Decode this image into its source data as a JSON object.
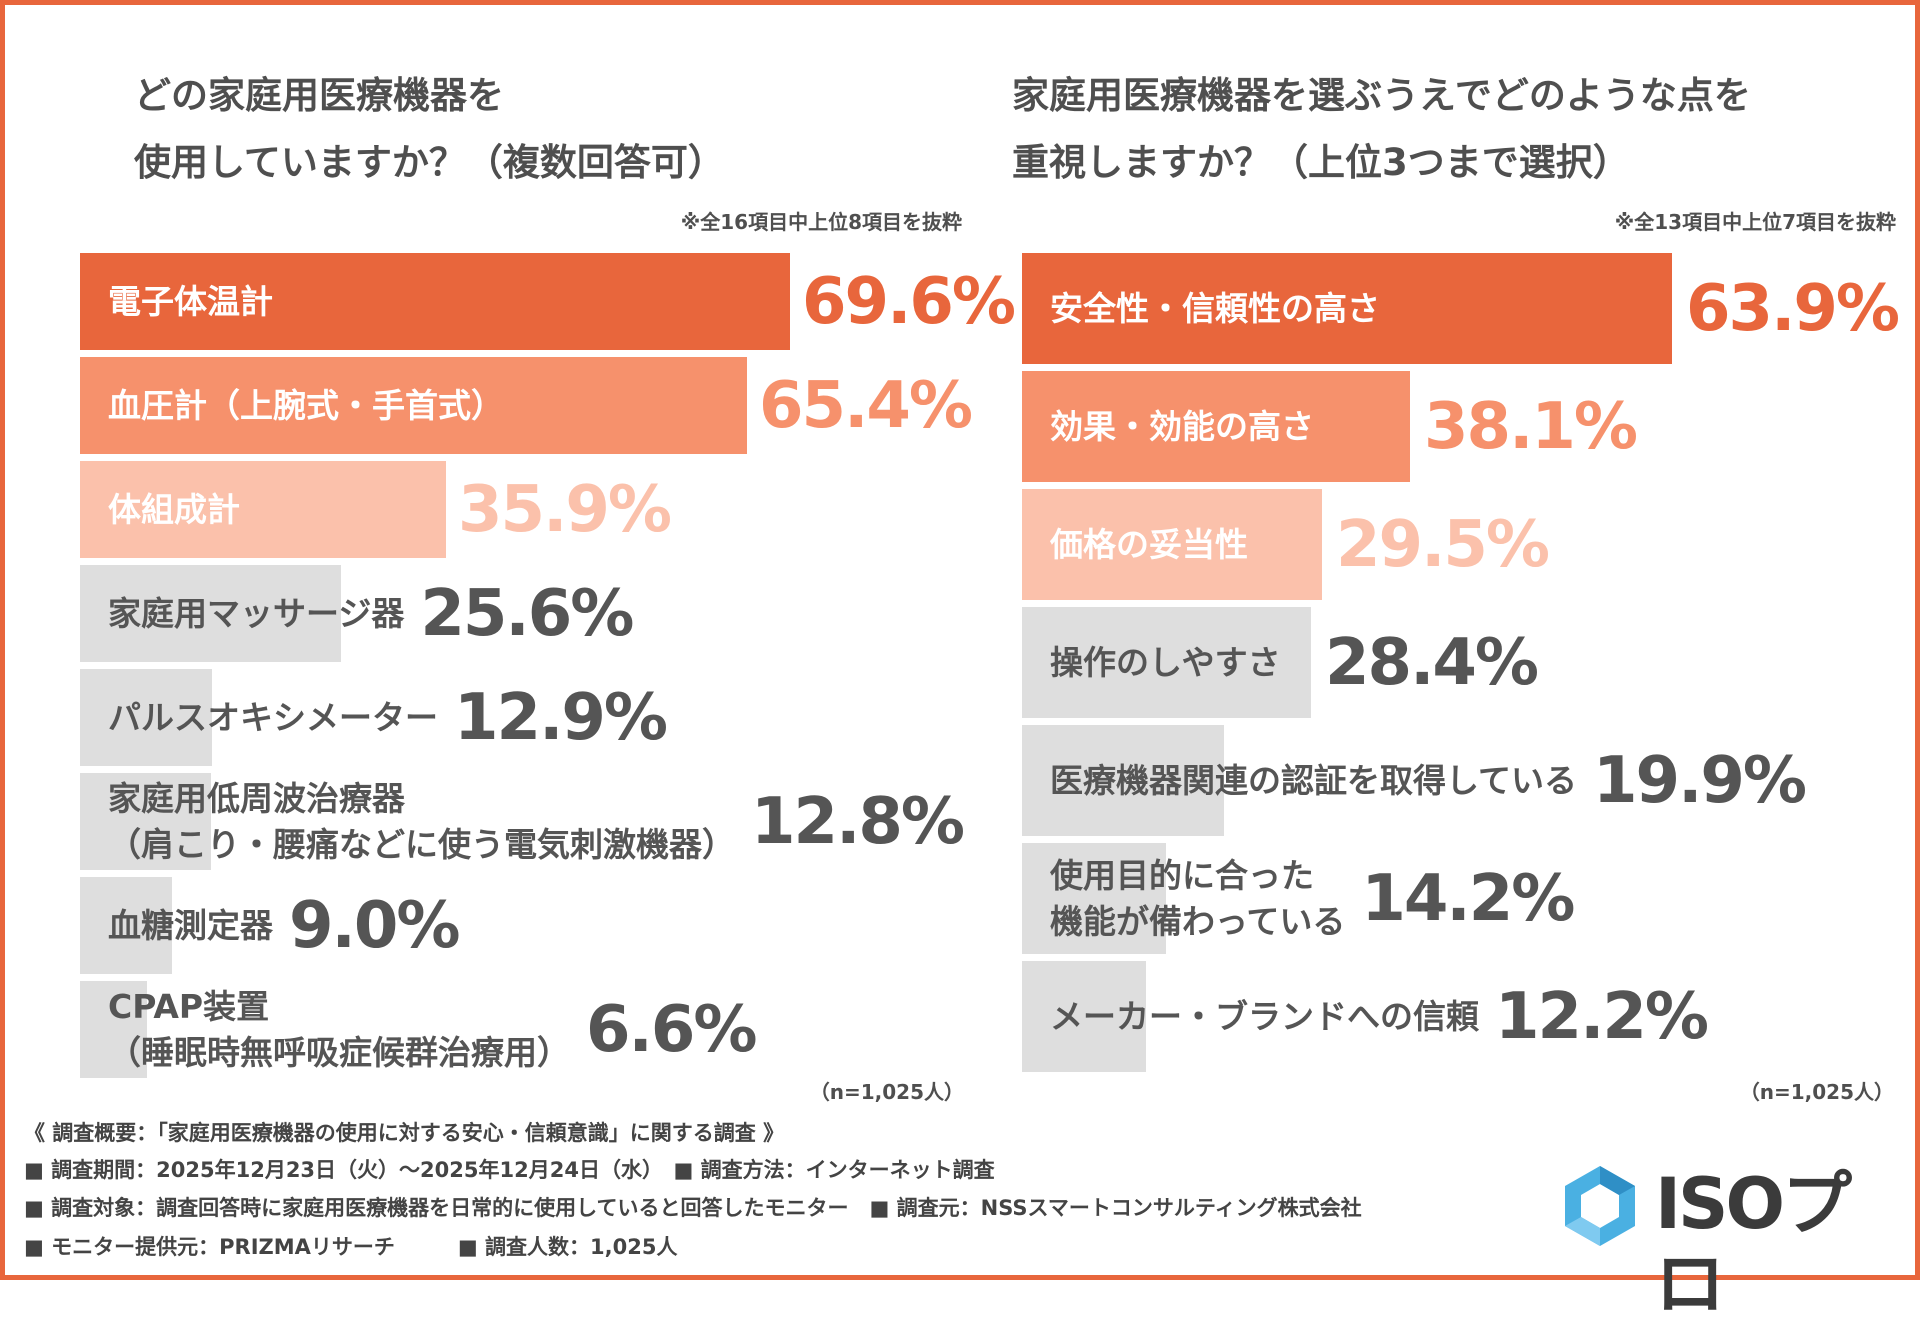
{
  "colors": {
    "frame": "#e8663c",
    "rank1": "#e8663c",
    "rank2": "#f6916c",
    "rank3": "#fbc1ab",
    "other": "#dedede",
    "other_value": "#555555",
    "logo_blue": "#4ab0e2"
  },
  "chart_data": [
    {
      "type": "bar",
      "orientation": "horizontal",
      "title_lines": [
        "どの家庭用医療機器を",
        "使用していますか？（複数回答可）"
      ],
      "note": "※全16項目中上位8項目を抜粋",
      "n_label": "（n=1,025人）",
      "unit": "%",
      "categories": [
        "電子体温計",
        "血圧計（上腕式・手首式）",
        "体組成計",
        "家庭用マッサージ器",
        "パルスオキシメーター",
        "家庭用低周波治療器\n（肩こり・腰痛などに使う電気刺激機器）",
        "血糖測定器",
        "CPAP装置\n（睡眠時無呼吸症候群治療用）"
      ],
      "values": [
        69.6,
        65.4,
        35.9,
        25.6,
        12.9,
        12.8,
        9.0,
        6.6
      ],
      "value_labels": [
        "69.6%",
        "65.4%",
        "35.9%",
        "25.6%",
        "12.9%",
        "12.8%",
        "9.0%",
        "6.6%"
      ]
    },
    {
      "type": "bar",
      "orientation": "horizontal",
      "title_lines": [
        "家庭用医療機器を選ぶうえでどのような点を",
        "重視しますか？（上位3つまで選択）"
      ],
      "note": "※全13項目中上位7項目を抜粋",
      "n_label": "（n=1,025人）",
      "unit": "%",
      "categories": [
        "安全性・信頼性の高さ",
        "効果・効能の高さ",
        "価格の妥当性",
        "操作のしやすさ",
        "医療機器関連の認証を取得している",
        "使用目的に合った\n機能が備わっている",
        "メーカー・ブランドへの信頼"
      ],
      "values": [
        63.9,
        38.1,
        29.5,
        28.4,
        19.9,
        14.2,
        12.2
      ],
      "value_labels": [
        "63.9%",
        "38.1%",
        "29.5%",
        "28.4%",
        "19.9%",
        "14.2%",
        "12.2%"
      ]
    }
  ],
  "footer": {
    "lines": [
      "《 調査概要：「家庭用医療機器の使用に対する安心・信頼意識」に関する調査 》",
      "■ 調査期間：2025年12月23日（火）～2025年12月24日（水）　■ 調査方法：インターネット調査",
      "■ 調査対象：調査回答時に家庭用医療機器を日常的に使用していると回答したモニター　■ 調査元：NSSスマートコンサルティング株式会社",
      "■ モニター提供元：PRIZMAリサーチ　　　■ 調査人数：1,025人"
    ]
  },
  "logo": {
    "text": "ISOプロ",
    "icon": "hexagon-icon"
  }
}
